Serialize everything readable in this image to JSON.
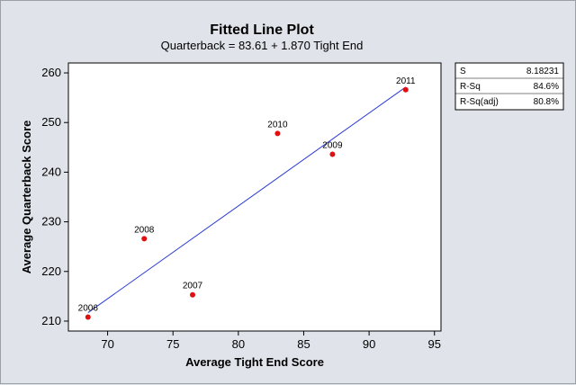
{
  "chart_data": {
    "type": "scatter",
    "title": "Fitted Line Plot",
    "subtitle": "Quarterback =  83.61 + 1.870 Tight End",
    "xlabel": "Average Tight End Score",
    "ylabel": "Average Quarterback Score",
    "xlim": [
      67,
      95.5
    ],
    "ylim": [
      208,
      262
    ],
    "x_ticks": [
      70,
      75,
      80,
      85,
      90,
      95
    ],
    "y_ticks": [
      210,
      220,
      230,
      240,
      250,
      260
    ],
    "points": [
      {
        "label": "2006",
        "x": 68.5,
        "y": 210.8
      },
      {
        "label": "2007",
        "x": 76.5,
        "y": 215.3
      },
      {
        "label": "2008",
        "x": 72.8,
        "y": 226.6
      },
      {
        "label": "2009",
        "x": 87.2,
        "y": 243.6
      },
      {
        "label": "2010",
        "x": 83.0,
        "y": 247.8
      },
      {
        "label": "2011",
        "x": 92.8,
        "y": 256.6
      }
    ],
    "fit_line": {
      "intercept": 83.61,
      "slope": 1.87,
      "x_range": [
        68.5,
        92.8
      ]
    },
    "colors": {
      "points": "#e01010",
      "line": "#2a3bd6",
      "plot_bg": "#ffffff",
      "page_bg": "#e0e3ea"
    },
    "legend": "right",
    "grid": false,
    "stats": [
      {
        "label": "S",
        "value": "8.18231"
      },
      {
        "label": "R-Sq",
        "value": "84.6%"
      },
      {
        "label": "R-Sq(adj)",
        "value": "80.8%"
      }
    ]
  }
}
